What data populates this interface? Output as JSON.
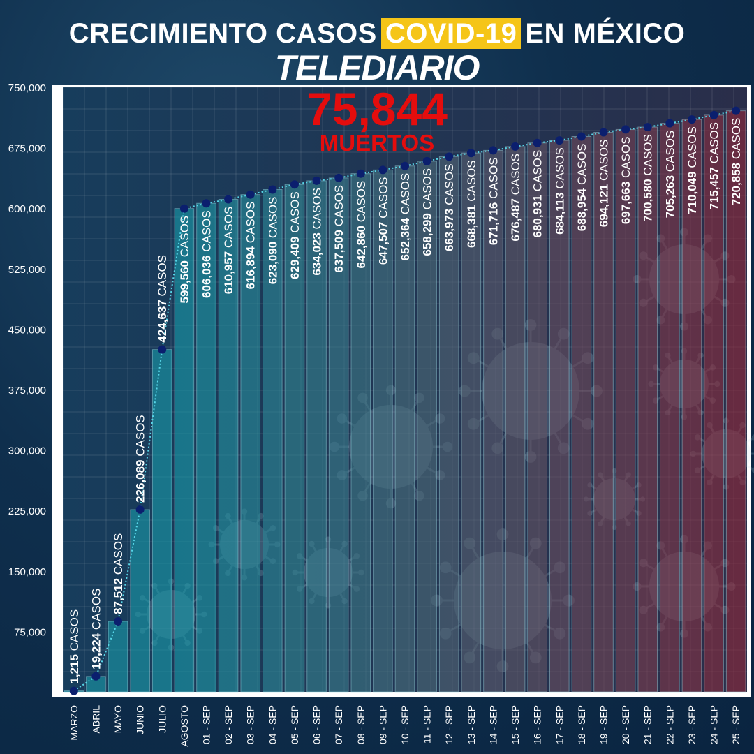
{
  "header": {
    "title_before": "CRECIMIENTO CASOS",
    "title_highlight": "COVID-19",
    "title_after": "EN MÉXICO",
    "brand": "TELEDIARIO"
  },
  "deaths": {
    "value": "75,844",
    "label": "MUERTOS"
  },
  "colors": {
    "highlight": "#f5c518",
    "deaths": "#e40d0d",
    "marker": "#0b1f6e",
    "trend_line": "#57d6e8",
    "bar_start": "#1a9aa8",
    "bar_end": "#8c2a3c"
  },
  "chart_data": {
    "type": "bar",
    "unit_suffix": "CASOS",
    "categories": [
      "MARZO",
      "ABRIL",
      "MAYO",
      "JUNIO",
      "JULIO",
      "AGOSTO",
      "01 - SEP",
      "02 - SEP",
      "03 - SEP",
      "04 - SEP",
      "05 - SEP",
      "06 - SEP",
      "07 - SEP",
      "08 - SEP",
      "09 - SEP",
      "10 - SEP",
      "11 - SEP",
      "12 - SEP",
      "13 - SEP",
      "14 - SEP",
      "15 - SEP",
      "16 - SEP",
      "17 - SEP",
      "18 - SEP",
      "19 - SEP",
      "20 - SEP",
      "21 - SEP",
      "22 - SEP",
      "23 - SEP",
      "24 - SEP",
      "25 - SEP"
    ],
    "values": [
      1215,
      19224,
      87512,
      226089,
      424637,
      599560,
      606036,
      610957,
      616894,
      623090,
      629409,
      634023,
      637509,
      642860,
      647507,
      652364,
      658299,
      663973,
      668381,
      671716,
      676487,
      680931,
      684113,
      688954,
      694121,
      697663,
      700580,
      705263,
      710049,
      715457,
      720858
    ],
    "labels": [
      "1,215",
      "19,224",
      "87,512",
      "226,089",
      "424,637",
      "599,560",
      "606,036",
      "610,957",
      "616,894",
      "623,090",
      "629,409",
      "634,023",
      "637,509",
      "642,860",
      "647,507",
      "652,364",
      "658,299",
      "663,973",
      "668,381",
      "671,716",
      "676,487",
      "680,931",
      "684,113",
      "688,954",
      "694,121",
      "697,663",
      "700,580",
      "705,263",
      "710,049",
      "715,457",
      "720,858"
    ],
    "yticks": [
      "75,000",
      "150,000",
      "225,000",
      "300,000",
      "375,000",
      "450,000",
      "525,000",
      "600,000",
      "675,000",
      "750,000"
    ],
    "ytick_values": [
      75000,
      150000,
      225000,
      300000,
      375000,
      450000,
      525000,
      600000,
      675000,
      750000
    ],
    "ylim": [
      0,
      750000
    ],
    "grid": true
  }
}
